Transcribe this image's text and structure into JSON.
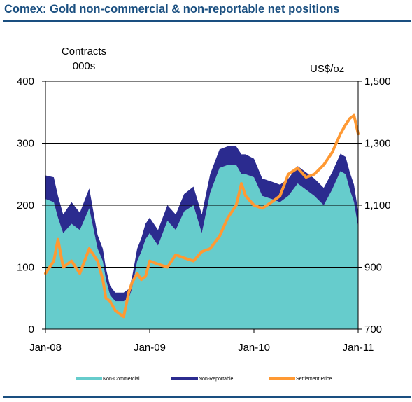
{
  "title": "Comex: Gold non-commercial & non-reportable net positions",
  "chart_data": {
    "type": "area",
    "left_axis": {
      "label_lines": [
        "Contracts",
        "000s"
      ],
      "ylim": [
        0,
        400
      ],
      "ticks": [
        "0",
        "100",
        "200",
        "300",
        "400"
      ]
    },
    "right_axis": {
      "label": "US$/oz",
      "ylim": [
        700,
        1500
      ],
      "ticks": [
        "700",
        "900",
        "1,100",
        "1,300",
        "1,500"
      ]
    },
    "x_axis": {
      "ticks": [
        "Jan-08",
        "Jan-09",
        "Jan-10",
        "Jan-11"
      ],
      "xlim": [
        2008.0,
        2011.0
      ]
    },
    "grid": "horizontal",
    "legend_position": "bottom",
    "x": [
      2008.0,
      2008.08,
      2008.12,
      2008.17,
      2008.25,
      2008.33,
      2008.42,
      2008.5,
      2008.55,
      2008.58,
      2008.62,
      2008.67,
      2008.75,
      2008.8,
      2008.83,
      2008.88,
      2008.92,
      2008.96,
      2009.0,
      2009.08,
      2009.17,
      2009.25,
      2009.33,
      2009.42,
      2009.5,
      2009.58,
      2009.67,
      2009.75,
      2009.83,
      2009.88,
      2009.92,
      2010.0,
      2010.08,
      2010.17,
      2010.25,
      2010.33,
      2010.42,
      2010.5,
      2010.58,
      2010.67,
      2010.75,
      2010.83,
      2010.88,
      2010.92,
      2010.96,
      2011.0
    ],
    "series": [
      {
        "name": "Non-Commercial",
        "axis": "left",
        "color": "#66cccc",
        "values": [
          210,
          205,
          180,
          155,
          170,
          160,
          195,
          130,
          110,
          80,
          55,
          45,
          45,
          50,
          65,
          110,
          125,
          145,
          155,
          135,
          175,
          160,
          190,
          200,
          155,
          220,
          260,
          265,
          265,
          250,
          250,
          245,
          215,
          210,
          205,
          215,
          235,
          225,
          215,
          200,
          225,
          255,
          250,
          225,
          205,
          165
        ]
      },
      {
        "name": "Non-Reportable",
        "axis": "left",
        "color": "#2b2b8f",
        "values": [
          38,
          40,
          35,
          30,
          35,
          28,
          32,
          22,
          20,
          18,
          15,
          14,
          14,
          15,
          18,
          20,
          22,
          25,
          25,
          25,
          25,
          25,
          28,
          30,
          30,
          30,
          30,
          30,
          30,
          32,
          32,
          30,
          28,
          28,
          28,
          28,
          28,
          28,
          28,
          28,
          28,
          28,
          28,
          28,
          28,
          25
        ]
      },
      {
        "name": "Settlement Price",
        "axis": "right",
        "color": "#ff9933",
        "values": [
          880,
          920,
          990,
          900,
          920,
          880,
          960,
          920,
          860,
          800,
          790,
          760,
          740,
          820,
          850,
          880,
          860,
          870,
          920,
          910,
          900,
          940,
          930,
          920,
          950,
          960,
          1000,
          1060,
          1100,
          1170,
          1130,
          1100,
          1090,
          1110,
          1130,
          1200,
          1220,
          1190,
          1200,
          1230,
          1270,
          1330,
          1360,
          1380,
          1390,
          1330
        ]
      }
    ]
  },
  "legend": [
    {
      "label": "Non-Commercial",
      "color": "#66cccc"
    },
    {
      "label": "Non-Reportable",
      "color": "#2b2b8f"
    },
    {
      "label": "Settlement Price",
      "color": "#ff9933"
    }
  ]
}
